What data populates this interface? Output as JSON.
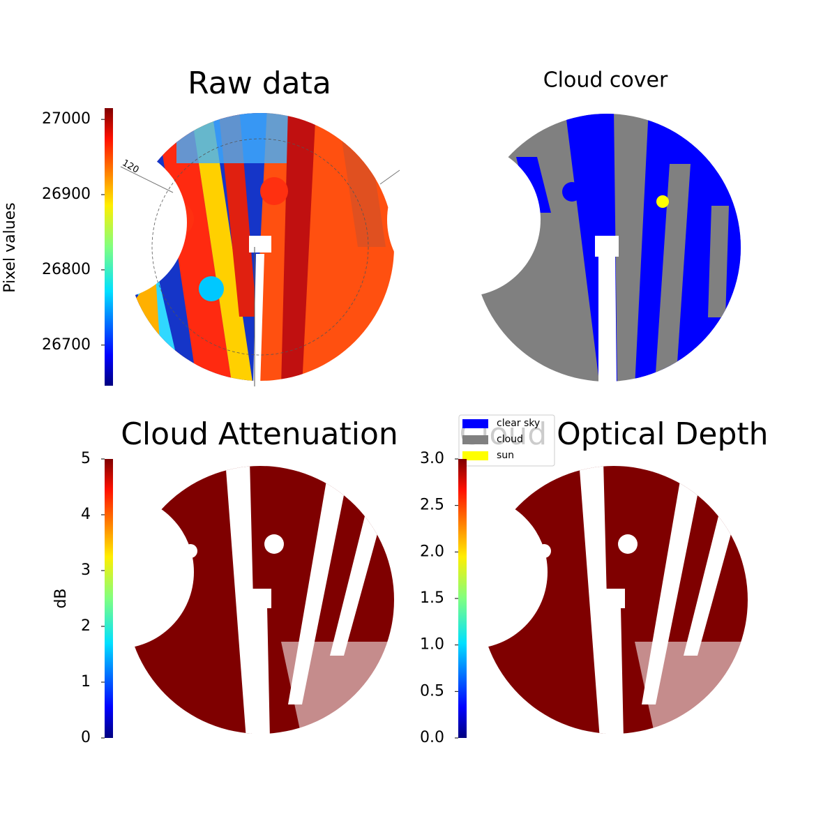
{
  "chart_data": [
    {
      "type": "image",
      "title": "Raw data",
      "colorbar_label": "Pixel values",
      "colormap": "jet",
      "clim": [
        26646,
        27015
      ],
      "cticks": [
        26700,
        26800,
        26900,
        27000
      ],
      "annotation": "120"
    },
    {
      "type": "image",
      "title": "Cloud cover",
      "legend": [
        {
          "name": "clear sky",
          "color": "#0000ff"
        },
        {
          "name": "cloud",
          "color": "#808080"
        },
        {
          "name": "sun",
          "color": "#ffff00"
        }
      ]
    },
    {
      "type": "image",
      "title": "Cloud Attenuation",
      "colorbar_label": "dB",
      "colormap": "jet",
      "clim": [
        0,
        5
      ],
      "cticks": [
        0,
        1,
        2,
        3,
        4,
        5
      ]
    },
    {
      "type": "image",
      "title": "Cloud Optical Depth",
      "colormap": "jet",
      "clim": [
        0,
        3
      ],
      "cticks": [
        {
          "value": 0,
          "label": "0.0"
        },
        {
          "value": 0.5,
          "label": "0.5"
        },
        {
          "value": 1,
          "label": "1.0"
        },
        {
          "value": 1.5,
          "label": "1.5"
        },
        {
          "value": 2,
          "label": "2.0"
        },
        {
          "value": 2.5,
          "label": "2.5"
        },
        {
          "value": 3,
          "label": "3.0"
        }
      ]
    }
  ]
}
